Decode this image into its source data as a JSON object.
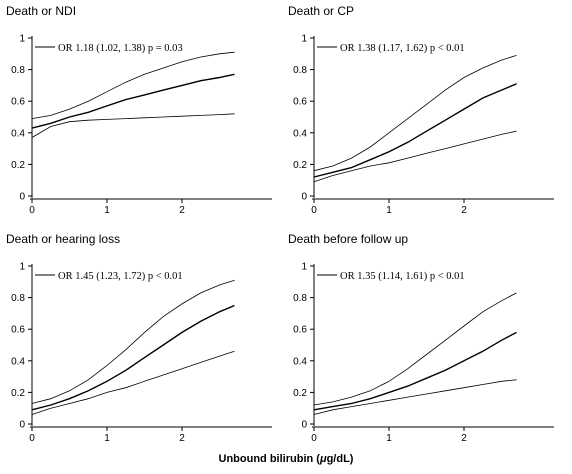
{
  "xlabel": {
    "prefix": "Unbound bilirubin (",
    "mu": "μ",
    "suffix": "g/dL)"
  },
  "chart_data": [
    {
      "type": "line",
      "title": "Death or NDI",
      "legend": "OR 1.18 (1.02, 1.38) p = 0.03",
      "xlim": [
        0,
        3.2
      ],
      "ylim": [
        0,
        1
      ],
      "xticks": [
        0,
        1,
        2
      ],
      "yticks": [
        0,
        0.2,
        0.4,
        0.6,
        0.8,
        1
      ],
      "series": [
        {
          "x": [
            0,
            0.25,
            0.5,
            0.75,
            1,
            1.25,
            1.5,
            1.75,
            2,
            2.25,
            2.5,
            2.7
          ],
          "values": [
            0.49,
            0.51,
            0.55,
            0.6,
            0.66,
            0.72,
            0.77,
            0.81,
            0.85,
            0.88,
            0.9,
            0.91
          ]
        },
        {
          "x": [
            0,
            0.25,
            0.5,
            0.75,
            1,
            1.25,
            1.5,
            1.75,
            2,
            2.25,
            2.5,
            2.7
          ],
          "values": [
            0.43,
            0.46,
            0.5,
            0.53,
            0.57,
            0.61,
            0.64,
            0.67,
            0.7,
            0.73,
            0.75,
            0.77
          ]
        },
        {
          "x": [
            0,
            0.25,
            0.5,
            0.75,
            1,
            1.25,
            1.5,
            1.75,
            2,
            2.25,
            2.5,
            2.7
          ],
          "values": [
            0.37,
            0.44,
            0.47,
            0.48,
            0.485,
            0.49,
            0.495,
            0.5,
            0.505,
            0.51,
            0.515,
            0.52
          ]
        }
      ]
    },
    {
      "type": "line",
      "title": "Death or CP",
      "legend": "OR 1.38 (1.17, 1.62) p < 0.01",
      "xlim": [
        0,
        3.2
      ],
      "ylim": [
        0,
        1
      ],
      "xticks": [
        0,
        1,
        2
      ],
      "yticks": [
        0,
        0.2,
        0.4,
        0.6,
        0.8,
        1
      ],
      "series": [
        {
          "x": [
            0,
            0.25,
            0.5,
            0.75,
            1,
            1.25,
            1.5,
            1.75,
            2,
            2.25,
            2.5,
            2.7
          ],
          "values": [
            0.16,
            0.19,
            0.24,
            0.31,
            0.4,
            0.49,
            0.58,
            0.67,
            0.75,
            0.81,
            0.86,
            0.89
          ]
        },
        {
          "x": [
            0,
            0.25,
            0.5,
            0.75,
            1,
            1.25,
            1.5,
            1.75,
            2,
            2.25,
            2.5,
            2.7
          ],
          "values": [
            0.12,
            0.15,
            0.18,
            0.23,
            0.28,
            0.34,
            0.41,
            0.48,
            0.55,
            0.62,
            0.67,
            0.71
          ]
        },
        {
          "x": [
            0,
            0.25,
            0.5,
            0.75,
            1,
            1.25,
            1.5,
            1.75,
            2,
            2.25,
            2.5,
            2.7
          ],
          "values": [
            0.09,
            0.13,
            0.16,
            0.19,
            0.21,
            0.24,
            0.27,
            0.3,
            0.33,
            0.36,
            0.39,
            0.41
          ]
        }
      ]
    },
    {
      "type": "line",
      "title": "Death or hearing loss",
      "legend": "OR 1.45 (1.23, 1.72) p < 0.01",
      "xlim": [
        0,
        3.2
      ],
      "ylim": [
        0,
        1
      ],
      "xticks": [
        0,
        1,
        2
      ],
      "yticks": [
        0,
        0.2,
        0.4,
        0.6,
        0.8,
        1
      ],
      "series": [
        {
          "x": [
            0,
            0.25,
            0.5,
            0.75,
            1,
            1.25,
            1.5,
            1.75,
            2,
            2.25,
            2.5,
            2.7
          ],
          "values": [
            0.13,
            0.16,
            0.21,
            0.28,
            0.37,
            0.47,
            0.58,
            0.68,
            0.76,
            0.83,
            0.88,
            0.91
          ]
        },
        {
          "x": [
            0,
            0.25,
            0.5,
            0.75,
            1,
            1.25,
            1.5,
            1.75,
            2,
            2.25,
            2.5,
            2.7
          ],
          "values": [
            0.09,
            0.12,
            0.16,
            0.21,
            0.27,
            0.34,
            0.42,
            0.5,
            0.58,
            0.65,
            0.71,
            0.75
          ]
        },
        {
          "x": [
            0,
            0.25,
            0.5,
            0.75,
            1,
            1.25,
            1.5,
            1.75,
            2,
            2.25,
            2.5,
            2.7
          ],
          "values": [
            0.06,
            0.1,
            0.13,
            0.16,
            0.2,
            0.23,
            0.27,
            0.31,
            0.35,
            0.39,
            0.43,
            0.46
          ]
        }
      ]
    },
    {
      "type": "line",
      "title": "Death before follow up",
      "legend": "OR 1.35 (1.14, 1.61) p < 0.01",
      "xlim": [
        0,
        3.2
      ],
      "ylim": [
        0,
        1
      ],
      "xticks": [
        0,
        1,
        2
      ],
      "yticks": [
        0,
        0.2,
        0.4,
        0.6,
        0.8,
        1
      ],
      "series": [
        {
          "x": [
            0,
            0.25,
            0.5,
            0.75,
            1,
            1.25,
            1.5,
            1.75,
            2,
            2.25,
            2.5,
            2.7
          ],
          "values": [
            0.12,
            0.14,
            0.17,
            0.21,
            0.27,
            0.35,
            0.44,
            0.53,
            0.62,
            0.71,
            0.78,
            0.83
          ]
        },
        {
          "x": [
            0,
            0.25,
            0.5,
            0.75,
            1,
            1.25,
            1.5,
            1.75,
            2,
            2.25,
            2.5,
            2.7
          ],
          "values": [
            0.09,
            0.11,
            0.13,
            0.16,
            0.2,
            0.24,
            0.29,
            0.34,
            0.4,
            0.46,
            0.53,
            0.58
          ]
        },
        {
          "x": [
            0,
            0.25,
            0.5,
            0.75,
            1,
            1.25,
            1.5,
            1.75,
            2,
            2.25,
            2.5,
            2.7
          ],
          "values": [
            0.06,
            0.09,
            0.11,
            0.13,
            0.15,
            0.17,
            0.19,
            0.21,
            0.23,
            0.25,
            0.27,
            0.28
          ]
        }
      ]
    }
  ]
}
